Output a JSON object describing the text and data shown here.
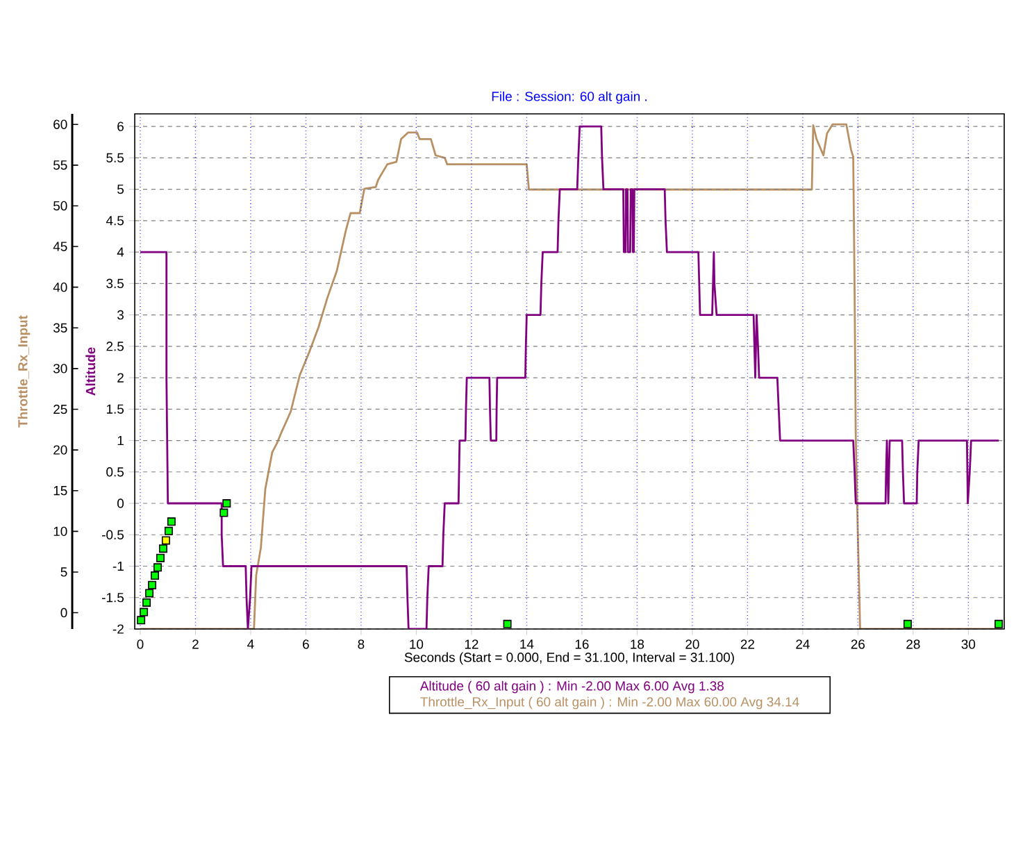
{
  "chart_data": {
    "type": "line",
    "title": "File :    Session: 60 alt gain .",
    "xlabel": "Seconds (Start = 0.000,  End = 31.100,  Interval =  31.100)",
    "ylabel": "Altitude",
    "y2label": "Throttle_Rx_Input",
    "xlim": [
      -0.2,
      31.3
    ],
    "xticks": [
      0,
      2,
      4,
      6,
      8,
      10,
      12,
      14,
      16,
      18,
      20,
      22,
      24,
      26,
      28,
      30
    ],
    "ylim": [
      -2,
      6.2
    ],
    "yticks": [
      -2,
      -1.5,
      -1,
      -0.5,
      0,
      0.5,
      1,
      1.5,
      2,
      2.5,
      3,
      3.5,
      4,
      4.5,
      5,
      5.5,
      6
    ],
    "y2lim": [
      -2,
      61.3
    ],
    "y2ticks": [
      0,
      5,
      10,
      15,
      20,
      25,
      30,
      35,
      40,
      45,
      50,
      55,
      60
    ],
    "grid": true,
    "annotations": [
      "Altitude ( 60 alt gain ) : Min -2.00   Max 6.00   Avg 1.38",
      "Throttle_Rx_Input ( 60 alt gain ) : Min -2.00   Max 60.00   Avg 34.14"
    ],
    "series": [
      {
        "color": "#800080",
        "x": [
          0,
          0.95,
          0.95,
          1.0,
          2.95,
          2.95,
          3.0,
          3.82,
          3.85,
          3.9,
          3.98,
          4.03,
          9.65,
          9.68,
          9.72,
          10.37,
          10.4,
          10.45,
          10.95,
          10.98,
          11.03,
          11.53,
          11.55,
          11.57,
          11.78,
          11.8,
          11.83,
          12.65,
          12.67,
          12.7,
          12.9,
          12.91,
          12.93,
          13.95,
          13.97,
          14.0,
          14.5,
          14.53,
          14.58,
          15.12,
          15.15,
          15.2,
          15.83,
          15.87,
          15.92,
          16.7,
          16.73,
          16.78,
          17.5,
          17.52,
          17.58,
          17.6,
          17.65,
          17.67,
          17.75,
          17.77,
          17.83,
          17.85,
          17.88,
          17.9,
          19.0,
          19.03,
          19.08,
          20.22,
          20.25,
          20.28,
          20.72,
          20.75,
          20.78,
          20.8,
          20.88,
          22.22,
          22.25,
          22.28,
          22.33,
          22.38,
          22.42,
          23.08,
          23.13,
          23.18,
          25.83,
          25.88,
          25.92,
          27.0,
          27.02,
          27.05,
          27.1,
          27.15,
          27.22,
          27.6,
          27.63,
          27.67,
          28.13,
          28.15,
          28.2,
          29.95,
          29.98,
          30.05,
          30.1,
          31.1
        ],
        "values": [
          4,
          4,
          2,
          0,
          0,
          -0.5,
          -1,
          -1,
          -1.5,
          -2,
          -1.5,
          -1,
          -1,
          -1.5,
          -2,
          -2,
          -1.5,
          -1,
          -1,
          -0.5,
          0,
          0,
          0.5,
          1,
          1,
          1.5,
          2,
          2,
          1.5,
          1,
          1,
          1.5,
          2,
          2,
          2.5,
          3,
          3,
          3.5,
          4,
          4,
          4.5,
          5,
          5,
          5.5,
          6,
          6,
          5.5,
          5,
          5,
          4,
          4,
          5,
          5,
          4,
          4,
          5,
          5,
          4,
          4,
          5,
          5,
          4.5,
          4,
          4,
          3.5,
          3,
          3,
          3.5,
          4,
          3.5,
          3,
          3,
          2.5,
          2,
          3,
          2.5,
          2,
          2,
          1.5,
          1,
          1,
          0.5,
          0,
          0,
          0.5,
          1,
          0,
          1,
          1,
          1,
          0.5,
          0,
          0,
          0.5,
          1,
          1,
          0,
          0.5,
          1,
          1
        ]
      },
      {
        "axis": "y2",
        "color": "#b89063",
        "x": [
          0,
          4.03,
          4.12,
          4.2,
          4.37,
          4.53,
          4.78,
          4.95,
          5.12,
          5.45,
          5.78,
          6.12,
          6.45,
          6.78,
          7.12,
          7.45,
          7.62,
          7.95,
          8.12,
          8.53,
          8.62,
          8.95,
          9.28,
          9.45,
          9.7,
          10.03,
          10.12,
          10.53,
          10.7,
          11.03,
          11.12,
          14.0,
          14.08,
          24.33,
          24.38,
          24.5,
          24.75,
          24.88,
          25.08,
          25.58,
          25.75,
          25.83,
          25.88,
          25.92,
          26.0,
          26.08,
          31.1
        ],
        "values": [
          -2,
          -2,
          -2,
          4.6,
          8,
          15.2,
          19.7,
          20.8,
          22.2,
          24.7,
          29.2,
          32,
          35,
          38.7,
          42,
          47,
          49.1,
          49.1,
          52.1,
          52.3,
          53.2,
          55.1,
          55.4,
          58.2,
          59,
          59,
          58.2,
          58.2,
          56.2,
          55.9,
          55.1,
          55.1,
          52,
          52,
          59.9,
          58.2,
          56.2,
          58.9,
          60,
          60,
          56.9,
          56,
          39.3,
          21.9,
          9.1,
          -2,
          -2
        ]
      },
      {
        "type": "scatter",
        "marker": "square",
        "x": [
          0.03,
          0.13,
          0.23,
          0.33,
          0.43,
          0.53,
          0.63,
          0.73,
          0.83,
          0.93,
          1.03,
          1.13,
          3.03,
          3.13,
          13.3,
          27.8,
          31.1
        ],
        "values": [
          -1.86,
          -1.73,
          -1.58,
          -1.43,
          -1.3,
          -1.15,
          -1.02,
          -0.87,
          -0.72,
          -0.59,
          -0.44,
          -0.29,
          -0.15,
          0,
          -1.92,
          -1.92,
          -1.92
        ],
        "colors": [
          "#00ff00",
          "#00ff00",
          "#00ff00",
          "#00ff00",
          "#00ff00",
          "#00ff00",
          "#00ff00",
          "#00ff00",
          "#00ff00",
          "#ffff00",
          "#00ff00",
          "#00ff00",
          "#00ff00",
          "#00ff00",
          "#00ff00",
          "#00ff00",
          "#00ff00"
        ]
      }
    ]
  }
}
